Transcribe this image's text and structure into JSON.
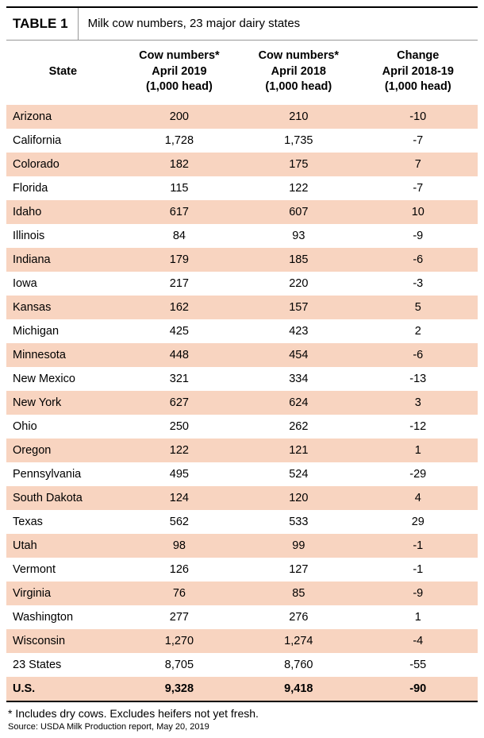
{
  "table_label": "TABLE 1",
  "table_title": "Milk cow numbers, 23 major dairy states",
  "columns": [
    "State",
    "Cow numbers*\nApril 2019\n(1,000 head)",
    "Cow numbers*\nApril 2018\n(1,000 head)",
    "Change\nApril 2018-19\n(1,000 head)"
  ],
  "rows": [
    {
      "state": "Arizona",
      "c2019": "200",
      "c2018": "210",
      "chg": "-10"
    },
    {
      "state": "California",
      "c2019": "1,728",
      "c2018": "1,735",
      "chg": "-7"
    },
    {
      "state": "Colorado",
      "c2019": "182",
      "c2018": "175",
      "chg": "7"
    },
    {
      "state": "Florida",
      "c2019": "115",
      "c2018": "122",
      "chg": "-7"
    },
    {
      "state": "Idaho",
      "c2019": "617",
      "c2018": "607",
      "chg": "10"
    },
    {
      "state": "Illinois",
      "c2019": "84",
      "c2018": "93",
      "chg": "-9"
    },
    {
      "state": "Indiana",
      "c2019": "179",
      "c2018": "185",
      "chg": "-6"
    },
    {
      "state": "Iowa",
      "c2019": "217",
      "c2018": "220",
      "chg": "-3"
    },
    {
      "state": "Kansas",
      "c2019": "162",
      "c2018": "157",
      "chg": "5"
    },
    {
      "state": "Michigan",
      "c2019": "425",
      "c2018": "423",
      "chg": "2"
    },
    {
      "state": "Minnesota",
      "c2019": "448",
      "c2018": "454",
      "chg": "-6"
    },
    {
      "state": "New Mexico",
      "c2019": "321",
      "c2018": "334",
      "chg": "-13"
    },
    {
      "state": "New York",
      "c2019": "627",
      "c2018": "624",
      "chg": "3"
    },
    {
      "state": "Ohio",
      "c2019": "250",
      "c2018": "262",
      "chg": "-12"
    },
    {
      "state": "Oregon",
      "c2019": "122",
      "c2018": "121",
      "chg": "1"
    },
    {
      "state": "Pennsylvania",
      "c2019": "495",
      "c2018": "524",
      "chg": "-29"
    },
    {
      "state": "South Dakota",
      "c2019": "124",
      "c2018": "120",
      "chg": "4"
    },
    {
      "state": "Texas",
      "c2019": "562",
      "c2018": "533",
      "chg": "29"
    },
    {
      "state": "Utah",
      "c2019": "98",
      "c2018": "99",
      "chg": "-1"
    },
    {
      "state": "Vermont",
      "c2019": "126",
      "c2018": "127",
      "chg": "-1"
    },
    {
      "state": "Virginia",
      "c2019": "76",
      "c2018": "85",
      "chg": "-9"
    },
    {
      "state": "Washington",
      "c2019": "277",
      "c2018": "276",
      "chg": "1"
    },
    {
      "state": "Wisconsin",
      "c2019": "1,270",
      "c2018": "1,274",
      "chg": "-4"
    },
    {
      "state": "23 States",
      "c2019": "8,705",
      "c2018": "8,760",
      "chg": "-55"
    },
    {
      "state": "U.S.",
      "c2019": "9,328",
      "c2018": "9,418",
      "chg": "-90",
      "bold": true
    }
  ],
  "footnote": "* Includes dry cows. Excludes heifers not yet fresh.",
  "source": "Source: USDA Milk Production report, May 20, 2019",
  "colors": {
    "stripe": "#f8d4c0",
    "background": "#ffffff",
    "border": "#000000",
    "divider": "#999999"
  }
}
